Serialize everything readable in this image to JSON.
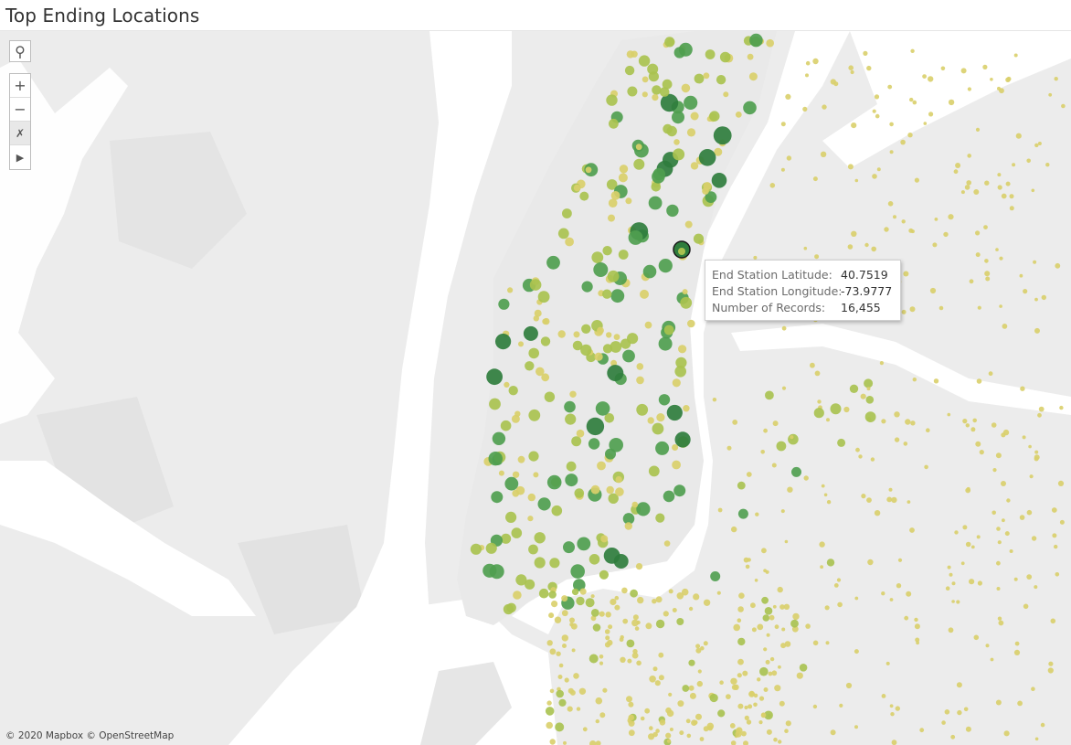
{
  "title": "Top Ending Locations",
  "map_controls": {
    "search_icon": "magnifier",
    "zoom_in": "+",
    "zoom_out": "−",
    "pan_lasso_icon": "pin-select",
    "expand_icon": "triangle-right"
  },
  "tooltip": {
    "rows": [
      {
        "label": "End Station Latitude:",
        "value": "40.7519"
      },
      {
        "label": "End Station Longitude:",
        "value": "-73.9777"
      },
      {
        "label": "Number of Records:",
        "value": "16,455"
      }
    ]
  },
  "attribution": "© 2020 Mapbox © OpenStreetMap",
  "colors": {
    "low": "#d9cf6a",
    "mid": "#a9c24f",
    "high": "#4f9e4f",
    "top": "#2f7d3d",
    "land": "#ececec",
    "water": "#ffffff"
  }
}
